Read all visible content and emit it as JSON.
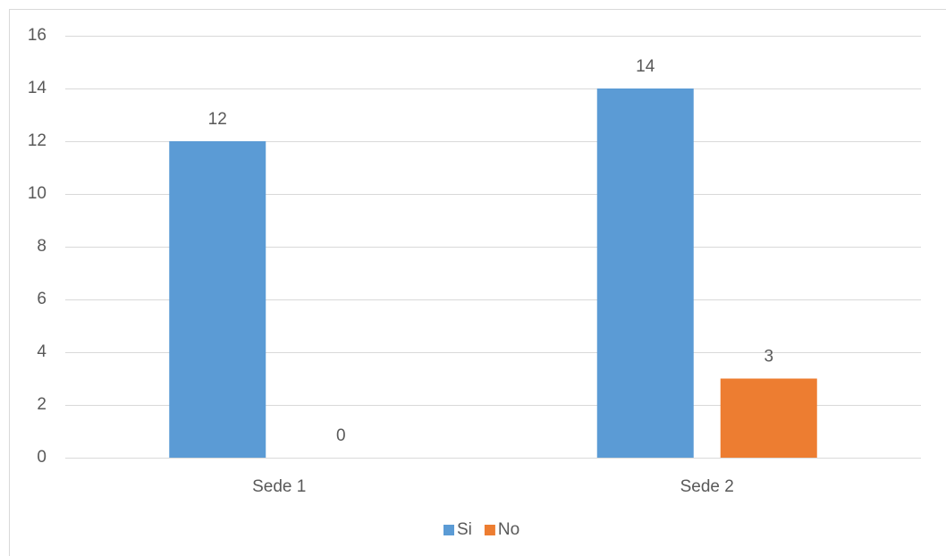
{
  "chart_data": {
    "type": "bar",
    "categories": [
      "Sede 1",
      "Sede 2"
    ],
    "series": [
      {
        "name": "Si",
        "color": "#5b9bd5",
        "values": [
          12,
          14
        ]
      },
      {
        "name": "No",
        "color": "#ed7d31",
        "values": [
          0,
          3
        ]
      }
    ],
    "ylim": [
      0,
      16
    ],
    "yticks": [
      0,
      2,
      4,
      6,
      8,
      10,
      12,
      14,
      16
    ],
    "grid": true,
    "legend": "bottom"
  }
}
